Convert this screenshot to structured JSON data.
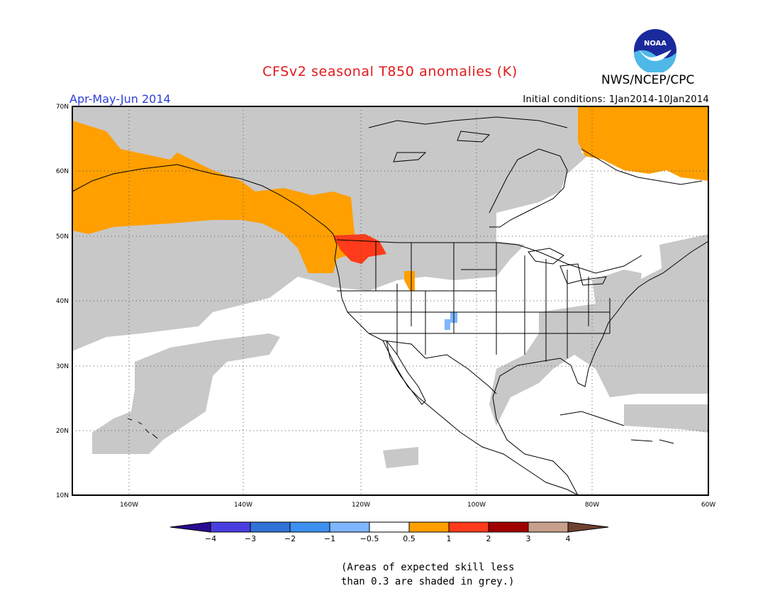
{
  "header": {
    "title": "CFSv2 seasonal T850 anomalies (K)",
    "org": "NWS/NCEP/CPC",
    "season": "Apr-May-Jun 2014",
    "initial_conditions": "Initial conditions: 1Jan2014-10Jan2014",
    "logo_text": "NOAA"
  },
  "map": {
    "lon_range": [
      -172,
      -60
    ],
    "lat_range": [
      10,
      70
    ],
    "lat_ticks": [
      "10N",
      "20N",
      "30N",
      "40N",
      "50N",
      "60N",
      "70N"
    ],
    "lon_ticks": [
      "160W",
      "140W",
      "120W",
      "100W",
      "80W",
      "60W"
    ],
    "colors": {
      "skill_grey": "#c8c8c8",
      "anom_0p5_1": "#ff9f00",
      "anom_1_2": "#ff3b1b",
      "anom_m1_m0p5": "#7fb6ff",
      "border": "#000000"
    }
  },
  "colorbar": {
    "labels": [
      "-4",
      "-3",
      "-2",
      "-1",
      "-0.5",
      "0.5",
      "1",
      "2",
      "3",
      "4"
    ],
    "colors": [
      "#2a0a90",
      "#4a3ee0",
      "#2f72d8",
      "#3d90f0",
      "#7fb6ff",
      "#ffffff",
      "#ff9f00",
      "#ff3b1b",
      "#a00000",
      "#c8a08c",
      "#6e4030"
    ]
  },
  "footnote": {
    "line1": "(Areas of expected skill less",
    "line2": "than 0.3 are shaded in grey.)"
  }
}
